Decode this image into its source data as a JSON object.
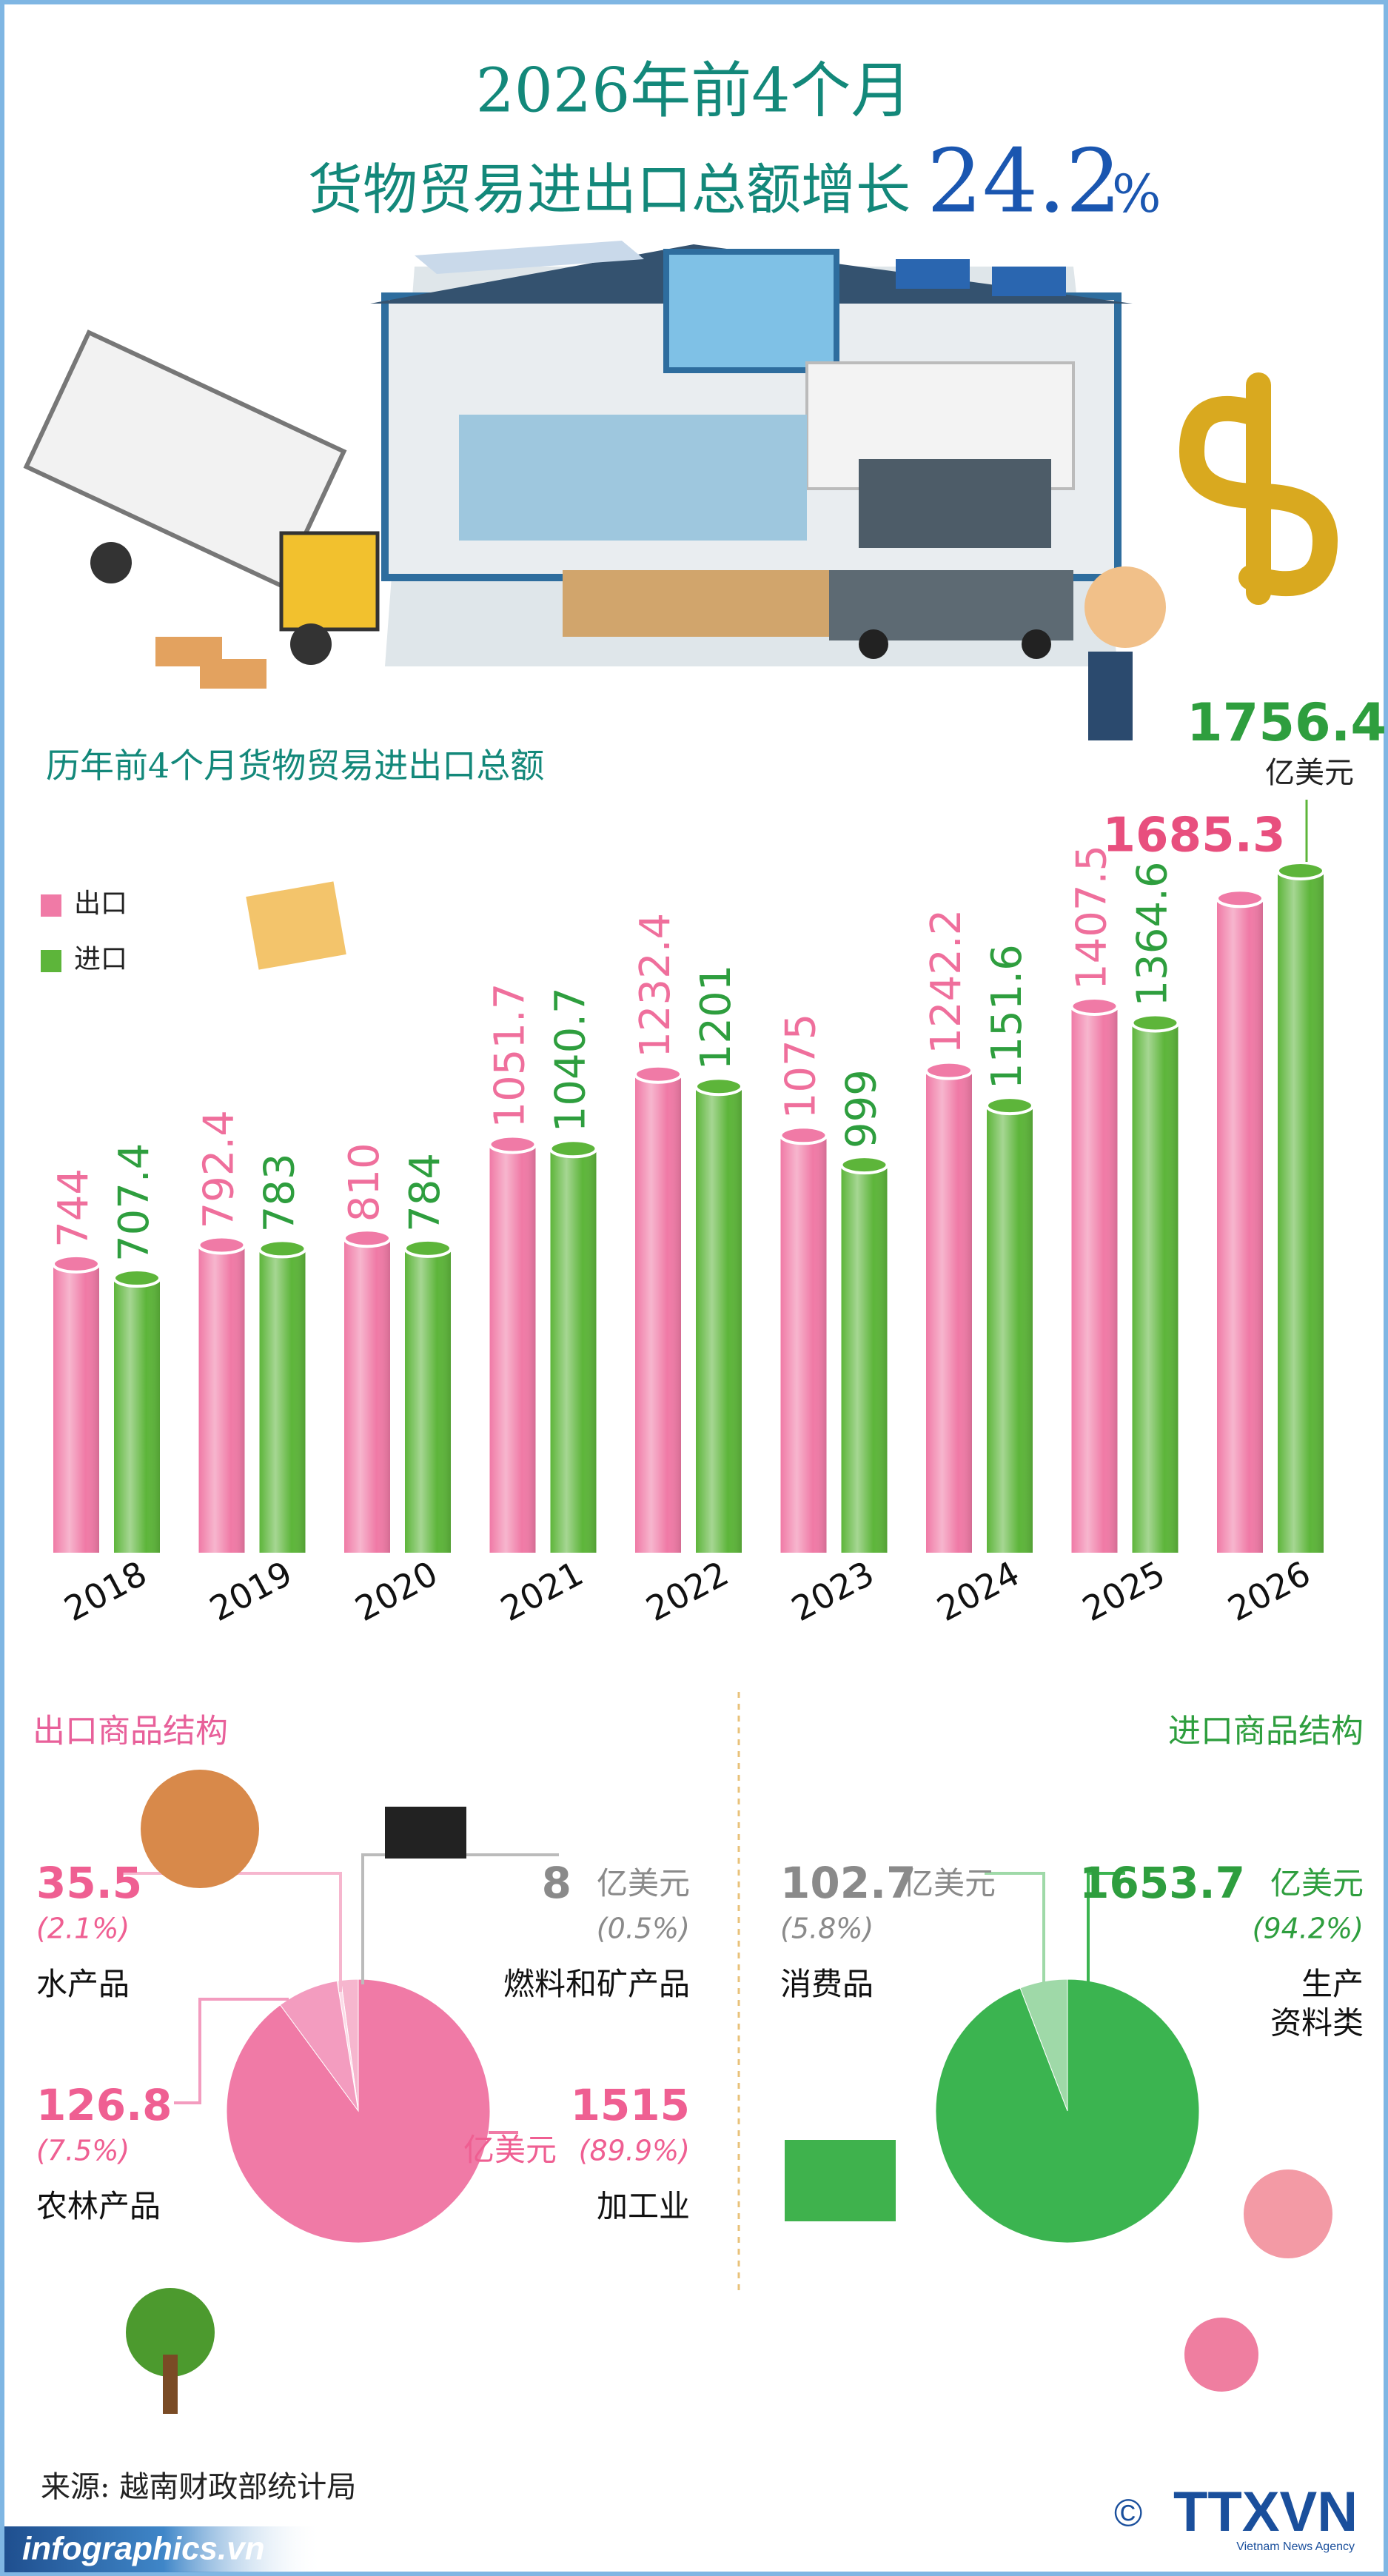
{
  "header": {
    "line1": "2026年前4个月",
    "line2": "货物贸易进出口总额增长",
    "growth": "24.2",
    "growth_unit": "%"
  },
  "chart_data": [
    {
      "type": "bar",
      "title": "历年前4个月货物贸易进出口总额",
      "unit": "亿美元",
      "categories": [
        "2018",
        "2019",
        "2020",
        "2021",
        "2022",
        "2023",
        "2024",
        "2025",
        "2026"
      ],
      "series": [
        {
          "name": "出口",
          "color": "#f07aa6",
          "values": [
            744,
            792.4,
            810,
            1051.7,
            1232.4,
            1075,
            1242.2,
            1407.5,
            1685.3
          ]
        },
        {
          "name": "进口",
          "color": "#5db53a",
          "values": [
            707.4,
            783,
            784,
            1040.7,
            1201,
            999,
            1151.6,
            1364.6,
            1756.4
          ]
        }
      ]
    },
    {
      "type": "pie",
      "title": "出口商品结构",
      "unit": "亿美元",
      "categories": [
        "水产品",
        "燃料和矿产品",
        "农林产品",
        "加工业"
      ],
      "values": [
        35.5,
        8,
        126.8,
        1515
      ],
      "share_labels": [
        "(2.1%)",
        "(0.5%)",
        "(7.5%)",
        "(89.9%)"
      ],
      "colors": [
        "#f6b6ce",
        "#fbdbe7",
        "#f39cbf",
        "#f07aa6"
      ]
    },
    {
      "type": "pie",
      "title": "进口商品结构",
      "unit": "亿美元",
      "categories": [
        "消费品",
        "生产\n资料类"
      ],
      "values": [
        102.7,
        1653.7
      ],
      "share_labels": [
        "(5.8%)",
        "(94.2%)"
      ],
      "colors": [
        "#9fd9a8",
        "#3bb450"
      ]
    }
  ],
  "footer": {
    "source": "来源: 越南财政部统计局",
    "site": "infographics.vn",
    "copyright": "©",
    "logo": "TTXVN",
    "agency": "Vietnam News Agency"
  }
}
